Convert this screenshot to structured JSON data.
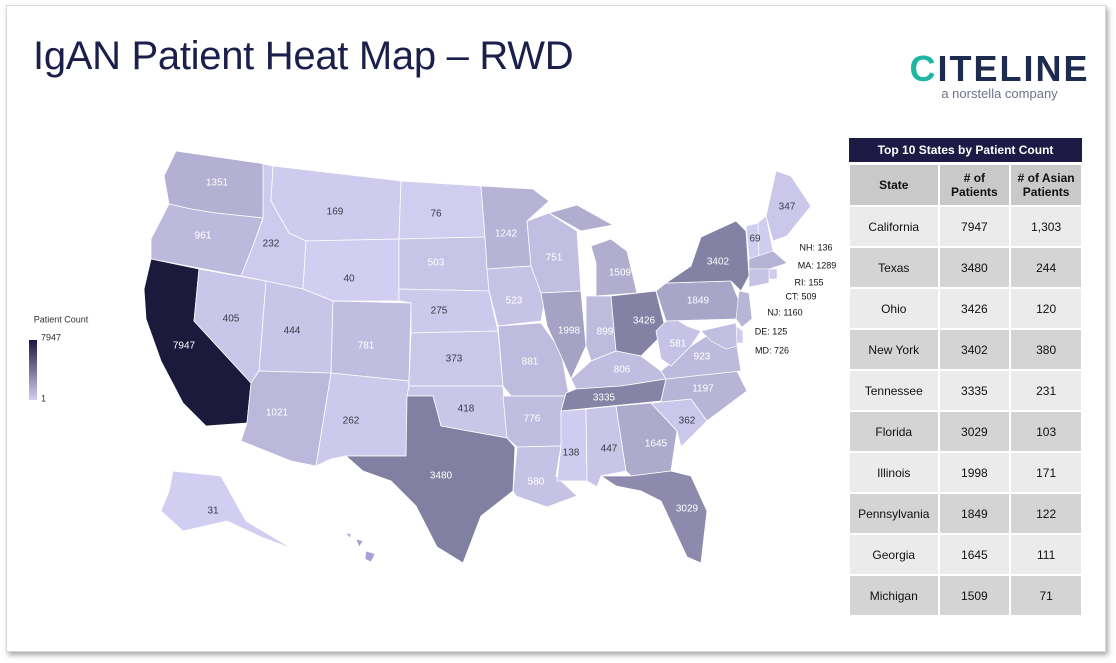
{
  "title": "IgAN Patient Heat Map – RWD",
  "logo": {
    "name": "CITELINE",
    "tagline": "a norstella company"
  },
  "map": {
    "legend_title": "Patient Count",
    "scale": {
      "min": 1,
      "max": 7947
    },
    "color_min": "#d3cff2",
    "color_max": "#1b1a3c",
    "values": [
      1351,
      961,
      7947,
      405,
      232,
      169,
      40,
      444,
      1021,
      781,
      262,
      76,
      503,
      275,
      373,
      418,
      3480,
      1242,
      523,
      881,
      776,
      580,
      751,
      1998,
      1509,
      899,
      3426,
      806,
      3335,
      138,
      447,
      1645,
      3029,
      362,
      1197,
      923,
      581,
      1849,
      3402,
      69,
      347,
      31
    ],
    "callouts": [
      {
        "value": 136,
        "label": "NH: 136"
      },
      {
        "value": 1289,
        "label": "MA: 1289"
      },
      {
        "value": 155,
        "label": "RI: 155"
      },
      {
        "value": 509,
        "label": "CT: 509"
      },
      {
        "value": 1160,
        "label": "NJ: 1160"
      },
      {
        "value": 125,
        "label": "DE: 125"
      },
      {
        "value": 726,
        "label": "MD: 726"
      }
    ]
  },
  "table": {
    "title": "Top 10 States by Patient Count",
    "columns": [
      "State",
      "# of Patients",
      "# of Asian Patients"
    ],
    "rows": [
      [
        "California",
        7947,
        "1,303"
      ],
      [
        "Texas",
        3480,
        244
      ],
      [
        "Ohio",
        3426,
        120
      ],
      [
        "New York",
        3402,
        380
      ],
      [
        "Tennessee",
        3335,
        231
      ],
      [
        "Florida",
        3029,
        103
      ],
      [
        "Illinois",
        1998,
        171
      ],
      [
        "Pennsylvania",
        1849,
        122
      ],
      [
        "Georgia",
        1645,
        111
      ],
      [
        "Michigan",
        1509,
        71
      ]
    ]
  }
}
